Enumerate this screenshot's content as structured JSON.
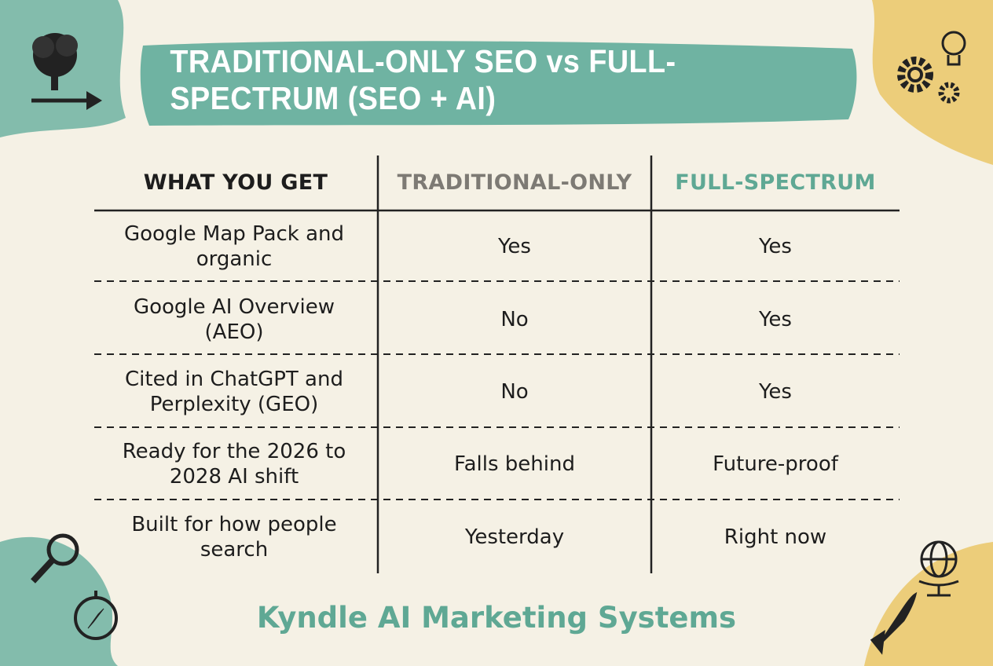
{
  "header": {
    "title": "TRADITIONAL-ONLY SEO vs FULL-SPECTRUM (SEO + AI)"
  },
  "table": {
    "columns": [
      "WHAT YOU GET",
      "TRADITIONAL-ONLY",
      "FULL-SPECTRUM"
    ],
    "rows": [
      [
        "Google Map Pack and organic",
        "Yes",
        "Yes"
      ],
      [
        "Google AI Overview (AEO)",
        "No",
        "Yes"
      ],
      [
        "Cited in ChatGPT and Perplexity (GEO)",
        "No",
        "Yes"
      ],
      [
        "Ready for the 2026 to 2028 AI shift",
        "Falls behind",
        "Future-proof"
      ],
      [
        "Built for how people search",
        "Yesterday",
        "Right now"
      ]
    ]
  },
  "footer": {
    "text": "Kyndle AI Marketing Systems"
  }
}
